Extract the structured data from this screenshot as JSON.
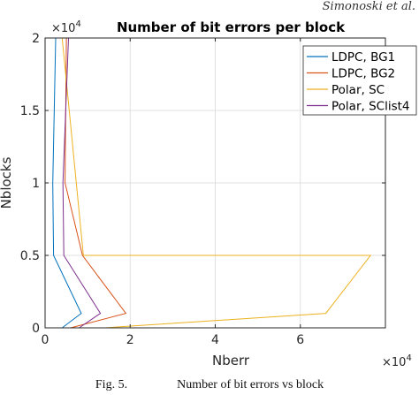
{
  "header": {
    "corner_note": "Simonoski et al."
  },
  "caption": {
    "fig_label": "Fig. 5.",
    "text": "Number of bit errors vs block"
  },
  "chart_data": {
    "type": "line",
    "title": "Number of bit errors per block",
    "xlabel": "Nberr",
    "ylabel": "Nblocks",
    "xlim": [
      0,
      80000
    ],
    "ylim": [
      0,
      20000
    ],
    "x_ticks": [
      0,
      20000,
      40000,
      60000
    ],
    "x_tick_labels": [
      "0",
      "2",
      "4",
      "6"
    ],
    "x_multiplier": "×10^4",
    "y_ticks": [
      0,
      5000,
      10000,
      15000,
      20000
    ],
    "y_tick_labels": [
      "0",
      "0.5",
      "1",
      "1.5",
      "2"
    ],
    "y_multiplier": "×10^4",
    "grid": true,
    "legend_position": "top-right",
    "series": [
      {
        "name": "LDPC, BG1",
        "color": "#0072BD",
        "points": [
          [
            2500,
            20000
          ],
          [
            1800,
            10000
          ],
          [
            2000,
            5000
          ],
          [
            8500,
            1000
          ],
          [
            4000,
            0
          ]
        ]
      },
      {
        "name": "LDPC, BG2",
        "color": "#D95319",
        "points": [
          [
            5000,
            20000
          ],
          [
            4700,
            10000
          ],
          [
            8800,
            5000
          ],
          [
            19000,
            1000
          ],
          [
            6000,
            0
          ]
        ]
      },
      {
        "name": "Polar, SC",
        "color": "#EDB120",
        "points": [
          [
            4000,
            20000
          ],
          [
            9000,
            5000
          ],
          [
            76500,
            5000
          ],
          [
            66000,
            1000
          ],
          [
            14000,
            0
          ]
        ]
      },
      {
        "name": "Polar, SClist4",
        "color": "#7E2F8E",
        "points": [
          [
            5500,
            20000
          ],
          [
            4200,
            10000
          ],
          [
            4400,
            5000
          ],
          [
            13000,
            1000
          ],
          [
            8000,
            0
          ]
        ]
      }
    ]
  }
}
